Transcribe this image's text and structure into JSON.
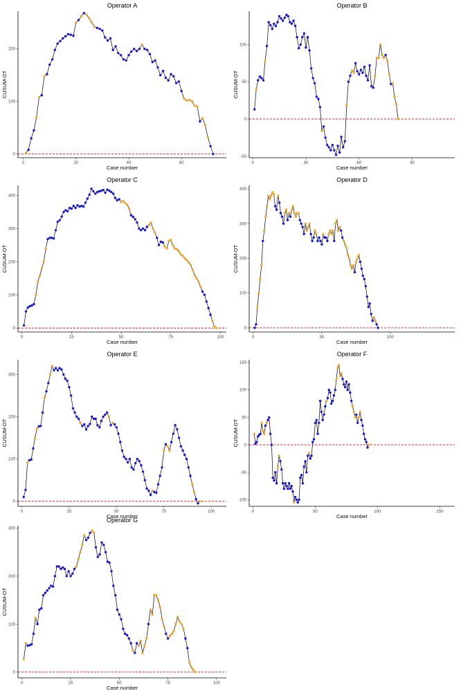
{
  "colors": {
    "blue": "#1414e6",
    "orange": "#f5a623",
    "line": "#000000",
    "ref": "#ff0000"
  },
  "chart_data": [
    {
      "type": "line",
      "title": "Operator A",
      "xlabel": "Case number",
      "ylabel": "CUSUM-OT",
      "xticks": [
        0,
        20,
        40,
        60
      ],
      "yticks": [
        0,
        100,
        200
      ],
      "xlim": [
        -2,
        77
      ],
      "ylim": [
        -7,
        272
      ],
      "reference_line": 0,
      "x_start": 1,
      "values": [
        2,
        8,
        30,
        45,
        70,
        108,
        112,
        148,
        152,
        170,
        180,
        198,
        210,
        215,
        220,
        224,
        228,
        227,
        225,
        250,
        255,
        262,
        268,
        265,
        258,
        250,
        242,
        240,
        238,
        235,
        222,
        216,
        220,
        198,
        205,
        192,
        188,
        180,
        178,
        188,
        195,
        200,
        196,
        200,
        208,
        200,
        198,
        190,
        175,
        178,
        165,
        150,
        158,
        145,
        140,
        152,
        148,
        135,
        138,
        120,
        105,
        102,
        103,
        100,
        92,
        90,
        62,
        68,
        55,
        32,
        15,
        0
      ],
      "outcomes": [
        "o",
        "b",
        "b",
        "b",
        "o",
        "o",
        "b",
        "o",
        "b",
        "b",
        "b",
        "b",
        "b",
        "b",
        "b",
        "b",
        "b",
        "b",
        "b",
        "o",
        "b",
        "o",
        "b",
        "o",
        "o",
        "o",
        "o",
        "b",
        "b",
        "b",
        "b",
        "b",
        "b",
        "b",
        "b",
        "b",
        "b",
        "b",
        "b",
        "b",
        "b",
        "b",
        "b",
        "b",
        "o",
        "b",
        "b",
        "b",
        "b",
        "b",
        "b",
        "b",
        "b",
        "b",
        "b",
        "b",
        "b",
        "b",
        "b",
        "b",
        "o",
        "o",
        "o",
        "o",
        "o",
        "o",
        "b",
        "o",
        "o",
        "o",
        "b",
        "b"
      ]
    },
    {
      "type": "line",
      "title": "Operator B",
      "xlabel": "Case number",
      "ylabel": "CUSUM-OT",
      "xticks": [
        0,
        30,
        60,
        90
      ],
      "yticks": [
        -50,
        0,
        50,
        100
      ],
      "xlim": [
        -2,
        114
      ],
      "ylim": [
        -52,
        145
      ],
      "reference_line": 0,
      "x_start": 1,
      "values": [
        13,
        40,
        52,
        57,
        55,
        52,
        78,
        98,
        130,
        126,
        121,
        128,
        125,
        130,
        138,
        135,
        132,
        136,
        140,
        138,
        130,
        128,
        132,
        125,
        110,
        95,
        100,
        110,
        115,
        96,
        110,
        92,
        68,
        55,
        48,
        30,
        27,
        16,
        -16,
        -10,
        -25,
        -35,
        -38,
        -42,
        -35,
        -42,
        -48,
        -36,
        -45,
        -24,
        -38,
        -30,
        19,
        50,
        58,
        65,
        62,
        75,
        64,
        60,
        66,
        62,
        70,
        58,
        52,
        72,
        44,
        42,
        58,
        82,
        82,
        100,
        86,
        82,
        86,
        78,
        60,
        47,
        48,
        30,
        20,
        0
      ],
      "outcomes": [
        "b",
        "o",
        "b",
        "b",
        "b",
        "b",
        "o",
        "b",
        "b",
        "b",
        "b",
        "b",
        "b",
        "b",
        "b",
        "b",
        "b",
        "b",
        "b",
        "b",
        "b",
        "b",
        "b",
        "b",
        "b",
        "b",
        "b",
        "b",
        "b",
        "b",
        "b",
        "b",
        "b",
        "b",
        "b",
        "b",
        "b",
        "b",
        "o",
        "b",
        "b",
        "b",
        "b",
        "b",
        "b",
        "b",
        "b",
        "b",
        "b",
        "b",
        "b",
        "b",
        "o",
        "b",
        "b",
        "o",
        "o",
        "b",
        "b",
        "b",
        "b",
        "b",
        "b",
        "b",
        "b",
        "b",
        "b",
        "b",
        "o",
        "o",
        "o",
        "o",
        "o",
        "o",
        "b",
        "o",
        "o",
        "b",
        "o",
        "o",
        "o",
        "o"
      ]
    },
    {
      "type": "line",
      "title": "Operator C",
      "xlabel": "Case number",
      "ylabel": "CUSUM-OT",
      "xticks": [
        0,
        25,
        50,
        75,
        100
      ],
      "yticks": [
        0,
        100,
        200,
        300,
        400
      ],
      "xlim": [
        -2,
        103
      ],
      "ylim": [
        -12,
        430
      ],
      "reference_line": 0,
      "x_start": 1,
      "values": [
        8,
        50,
        62,
        66,
        68,
        72,
        100,
        140,
        158,
        180,
        200,
        238,
        268,
        272,
        272,
        270,
        295,
        320,
        325,
        336,
        350,
        355,
        352,
        362,
        360,
        368,
        362,
        370,
        366,
        368,
        366,
        378,
        390,
        402,
        420,
        412,
        405,
        410,
        412,
        414,
        416,
        408,
        417,
        414,
        410,
        405,
        392,
        385,
        388,
        380,
        383,
        376,
        372,
        360,
        340,
        335,
        328,
        318,
        300,
        295,
        300,
        295,
        305,
        310,
        318,
        300,
        288,
        272,
        250,
        260,
        258,
        245,
        240,
        262,
        266,
        250,
        240,
        238,
        232,
        222,
        218,
        210,
        205,
        198,
        190,
        175,
        160,
        150,
        140,
        125,
        110,
        100,
        80,
        60,
        40,
        22,
        5,
        0
      ],
      "outcomes": [
        "b",
        "b",
        "b",
        "b",
        "b",
        "b",
        "o",
        "o",
        "o",
        "o",
        "o",
        "o",
        "b",
        "b",
        "b",
        "b",
        "b",
        "b",
        "b",
        "b",
        "b",
        "b",
        "b",
        "b",
        "b",
        "b",
        "b",
        "b",
        "b",
        "b",
        "b",
        "b",
        "b",
        "b",
        "b",
        "b",
        "b",
        "b",
        "b",
        "b",
        "b",
        "b",
        "b",
        "b",
        "b",
        "b",
        "b",
        "b",
        "b",
        "o",
        "o",
        "o",
        "o",
        "o",
        "b",
        "b",
        "b",
        "b",
        "b",
        "b",
        "b",
        "b",
        "b",
        "o",
        "o",
        "o",
        "o",
        "b",
        "b",
        "b",
        "b",
        "o",
        "o",
        "o",
        "o",
        "o",
        "o",
        "o",
        "o",
        "o",
        "o",
        "o",
        "o",
        "o",
        "o",
        "o",
        "o",
        "o",
        "o",
        "o",
        "b",
        "b",
        "b",
        "b",
        "b",
        "o",
        "o",
        "o"
      ]
    },
    {
      "type": "line",
      "title": "Operator D",
      "xlabel": "Case number",
      "ylabel": "CUSUM-OT",
      "xticks": [
        0,
        50,
        100
      ],
      "yticks": [
        0,
        100,
        200,
        300,
        400
      ],
      "xlim": [
        -3,
        147
      ],
      "ylim": [
        -12,
        410
      ],
      "reference_line": 0,
      "x_start": 1,
      "values": [
        0,
        10,
        60,
        100,
        140,
        180,
        250,
        280,
        320,
        350,
        380,
        370,
        380,
        390,
        385,
        350,
        340,
        380,
        360,
        330,
        320,
        300,
        330,
        340,
        310,
        330,
        320,
        340,
        350,
        330,
        320,
        330,
        330,
        310,
        300,
        290,
        270,
        300,
        280,
        290,
        300,
        270,
        250,
        260,
        280,
        270,
        250,
        260,
        250,
        240,
        270,
        260,
        260,
        250,
        270,
        280,
        270,
        280,
        250,
        300,
        310,
        280,
        290,
        280,
        260,
        250,
        240,
        230,
        210,
        200,
        180,
        170,
        180,
        160,
        190,
        200,
        210,
        190,
        170,
        150,
        140,
        120,
        90,
        60,
        70,
        40,
        20,
        30,
        20,
        10,
        0
      ],
      "outcomes": [
        "b",
        "b",
        "o",
        "o",
        "o",
        "o",
        "b",
        "o",
        "o",
        "o",
        "o",
        "o",
        "o",
        "o",
        "o",
        "b",
        "b",
        "o",
        "b",
        "b",
        "b",
        "b",
        "o",
        "o",
        "b",
        "o",
        "b",
        "o",
        "o",
        "o",
        "o",
        "o",
        "o",
        "b",
        "b",
        "b",
        "b",
        "o",
        "o",
        "o",
        "o",
        "b",
        "b",
        "b",
        "o",
        "o",
        "b",
        "b",
        "b",
        "b",
        "o",
        "b",
        "b",
        "b",
        "o",
        "o",
        "o",
        "o",
        "b",
        "o",
        "o",
        "o",
        "o",
        "b",
        "b",
        "o",
        "o",
        "o",
        "o",
        "o",
        "o",
        "o",
        "o",
        "b",
        "o",
        "o",
        "o",
        "b",
        "b",
        "b",
        "b",
        "b",
        "b",
        "b",
        "b",
        "b",
        "b",
        "o",
        "o",
        "b",
        "b"
      ]
    },
    {
      "type": "line",
      "title": "Operator E",
      "xlabel": "Case number",
      "ylabel": "CUSUM-OT",
      "xticks": [
        0,
        25,
        50,
        75,
        100
      ],
      "yticks": [
        0,
        100,
        200,
        300
      ],
      "xlim": [
        -2,
        108
      ],
      "ylim": [
        -12,
        335
      ],
      "reference_line": 0,
      "x_start": 1,
      "values": [
        10,
        27,
        91,
        97,
        99,
        125,
        150,
        172,
        177,
        178,
        210,
        245,
        260,
        280,
        300,
        320,
        310,
        315,
        310,
        315,
        312,
        300,
        290,
        285,
        270,
        250,
        220,
        210,
        200,
        195,
        185,
        178,
        182,
        170,
        178,
        183,
        200,
        195,
        195,
        180,
        175,
        190,
        200,
        205,
        210,
        200,
        180,
        185,
        182,
        175,
        160,
        140,
        120,
        105,
        100,
        92,
        100,
        80,
        75,
        90,
        100,
        95,
        85,
        70,
        50,
        30,
        25,
        15,
        25,
        22,
        20,
        40,
        60,
        80,
        120,
        135,
        130,
        120,
        140,
        160,
        180,
        170,
        150,
        130,
        120,
        110,
        100,
        80,
        60,
        40,
        22,
        5,
        -5,
        0
      ],
      "outcomes": [
        "b",
        "b",
        "o",
        "b",
        "b",
        "b",
        "o",
        "o",
        "b",
        "b",
        "b",
        "o",
        "b",
        "b",
        "o",
        "o",
        "b",
        "b",
        "b",
        "b",
        "b",
        "b",
        "b",
        "b",
        "b",
        "b",
        "b",
        "b",
        "b",
        "b",
        "o",
        "b",
        "b",
        "b",
        "b",
        "b",
        "b",
        "b",
        "b",
        "b",
        "b",
        "b",
        "b",
        "b",
        "b",
        "o",
        "b",
        "o",
        "b",
        "b",
        "b",
        "b",
        "b",
        "b",
        "b",
        "b",
        "b",
        "b",
        "b",
        "b",
        "b",
        "b",
        "b",
        "b",
        "b",
        "b",
        "b",
        "b",
        "o",
        "b",
        "b",
        "b",
        "b",
        "b",
        "o",
        "b",
        "o",
        "o",
        "b",
        "b",
        "b",
        "b",
        "b",
        "b",
        "b",
        "b",
        "b",
        "b",
        "b",
        "o",
        "o",
        "b",
        "b",
        "o"
      ]
    },
    {
      "type": "line",
      "title": "Operator F",
      "xlabel": "Case number",
      "ylabel": "CUSUM-OT",
      "xticks": [
        0,
        50,
        100,
        150
      ],
      "yticks": [
        -100,
        -50,
        0,
        50,
        100,
        150
      ],
      "xlim": [
        -3,
        162
      ],
      "ylim": [
        -112,
        155
      ],
      "reference_line": 0,
      "x_start": 1,
      "values": [
        20,
        2,
        5,
        15,
        18,
        20,
        40,
        25,
        20,
        35,
        40,
        45,
        50,
        20,
        0,
        -60,
        -65,
        -50,
        -70,
        -40,
        -20,
        -30,
        -45,
        -70,
        -80,
        -70,
        -75,
        -80,
        -70,
        -80,
        -75,
        -85,
        -105,
        -95,
        -100,
        -105,
        -100,
        -60,
        -55,
        -70,
        -40,
        -30,
        -50,
        -20,
        -15,
        -25,
        -20,
        5,
        10,
        40,
        45,
        20,
        40,
        80,
        60,
        45,
        55,
        70,
        80,
        85,
        100,
        95,
        75,
        80,
        90,
        100,
        120,
        140,
        145,
        125,
        130,
        120,
        110,
        105,
        115,
        100,
        110,
        95,
        80,
        70,
        60,
        50,
        55,
        40,
        50,
        60,
        45,
        35,
        20,
        10,
        5,
        -5,
        0
      ],
      "outcomes": [
        "o",
        "b",
        "b",
        "b",
        "b",
        "b",
        "o",
        "o",
        "o",
        "b",
        "o",
        "b",
        "b",
        "b",
        "b",
        "b",
        "b",
        "b",
        "b",
        "o",
        "o",
        "b",
        "b",
        "b",
        "b",
        "b",
        "b",
        "b",
        "b",
        "b",
        "b",
        "b",
        "o",
        "b",
        "b",
        "b",
        "b",
        "b",
        "b",
        "b",
        "b",
        "b",
        "b",
        "b",
        "o",
        "b",
        "b",
        "b",
        "b",
        "b",
        "b",
        "b",
        "b",
        "b",
        "b",
        "b",
        "b",
        "b",
        "o",
        "b",
        "b",
        "b",
        "b",
        "b",
        "b",
        "b",
        "o",
        "o",
        "o",
        "o",
        "o",
        "b",
        "b",
        "b",
        "b",
        "b",
        "b",
        "b",
        "b",
        "o",
        "o",
        "o",
        "b",
        "b",
        "o",
        "o",
        "b",
        "b",
        "b",
        "b",
        "b",
        "b",
        "o"
      ]
    },
    {
      "type": "line",
      "title": "Operator G",
      "xlabel": "Case number",
      "ylabel": "CUSUM-OT",
      "xticks": [
        0,
        25,
        50,
        75,
        100
      ],
      "yticks": [
        0,
        100,
        200,
        300
      ],
      "xlim": [
        -2,
        105
      ],
      "ylim": [
        -12,
        305
      ],
      "reference_line": 0,
      "x_start": 1,
      "values": [
        27,
        60,
        55,
        56,
        58,
        80,
        113,
        100,
        130,
        133,
        160,
        165,
        170,
        175,
        180,
        178,
        200,
        220,
        220,
        215,
        218,
        215,
        200,
        210,
        200,
        205,
        215,
        220,
        235,
        250,
        265,
        285,
        275,
        280,
        290,
        295,
        290,
        260,
        240,
        245,
        270,
        265,
        250,
        230,
        228,
        210,
        180,
        160,
        130,
        120,
        110,
        90,
        80,
        77,
        70,
        60,
        45,
        40,
        60,
        55,
        65,
        40,
        55,
        70,
        100,
        130,
        120,
        160,
        160,
        150,
        135,
        110,
        95,
        80,
        70,
        75,
        80,
        85,
        100,
        115,
        105,
        100,
        90,
        70,
        50,
        20,
        10,
        5,
        0
      ],
      "outcomes": [
        "o",
        "o",
        "b",
        "b",
        "b",
        "b",
        "o",
        "b",
        "b",
        "b",
        "b",
        "b",
        "b",
        "b",
        "b",
        "b",
        "b",
        "b",
        "b",
        "b",
        "b",
        "b",
        "b",
        "b",
        "b",
        "b",
        "b",
        "o",
        "o",
        "o",
        "o",
        "o",
        "b",
        "b",
        "b",
        "o",
        "o",
        "b",
        "b",
        "b",
        "b",
        "b",
        "b",
        "b",
        "b",
        "b",
        "b",
        "b",
        "b",
        "b",
        "b",
        "b",
        "b",
        "b",
        "b",
        "b",
        "o",
        "b",
        "b",
        "o",
        "o",
        "o",
        "o",
        "o",
        "b",
        "o",
        "o",
        "o",
        "o",
        "o",
        "o",
        "o",
        "o",
        "b",
        "b",
        "o",
        "o",
        "o",
        "o",
        "o",
        "o",
        "o",
        "o",
        "b",
        "b",
        "o",
        "o",
        "o",
        "o"
      ]
    }
  ]
}
